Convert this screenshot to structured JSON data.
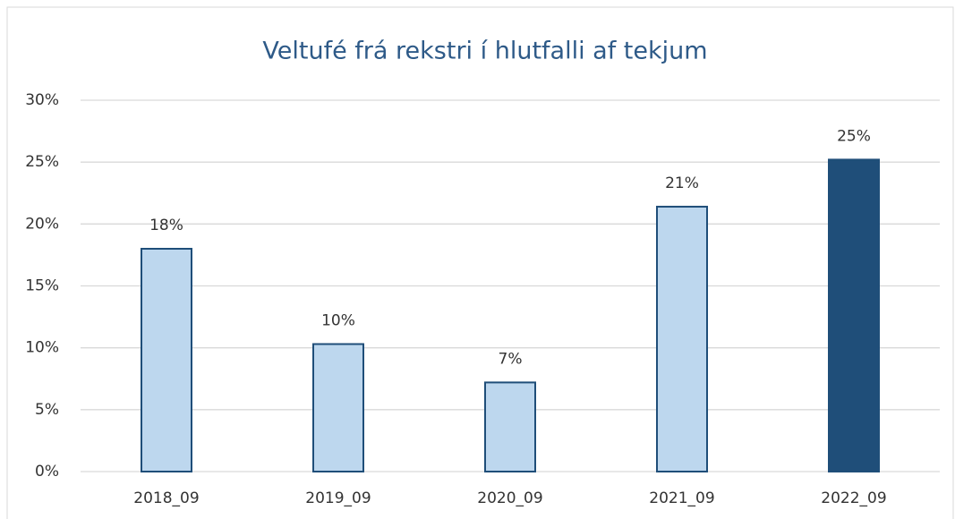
{
  "chart_data": {
    "type": "bar",
    "title": "Veltufé frá rekstri í hlutfalli af tekjum",
    "categories": [
      "2018_09",
      "2019_09",
      "2020_09",
      "2021_09",
      "2022_09"
    ],
    "values": [
      18.0,
      10.3,
      7.2,
      21.4,
      25.2
    ],
    "value_labels": [
      "18%",
      "10%",
      "7%",
      "21%",
      "25%"
    ],
    "colors": [
      "#bdd7ee",
      "#bdd7ee",
      "#bdd7ee",
      "#bdd7ee",
      "#1f4e79"
    ],
    "edge_color": "#1f4e79",
    "ylim": [
      0,
      30
    ],
    "yticks": [
      {
        "value": 0,
        "label": "0%"
      },
      {
        "value": 5,
        "label": "5%"
      },
      {
        "value": 10,
        "label": "10%"
      },
      {
        "value": 15,
        "label": "15%"
      },
      {
        "value": 20,
        "label": "20%"
      },
      {
        "value": 25,
        "label": "25%"
      },
      {
        "value": 30,
        "label": "30%"
      }
    ],
    "grid": true
  }
}
